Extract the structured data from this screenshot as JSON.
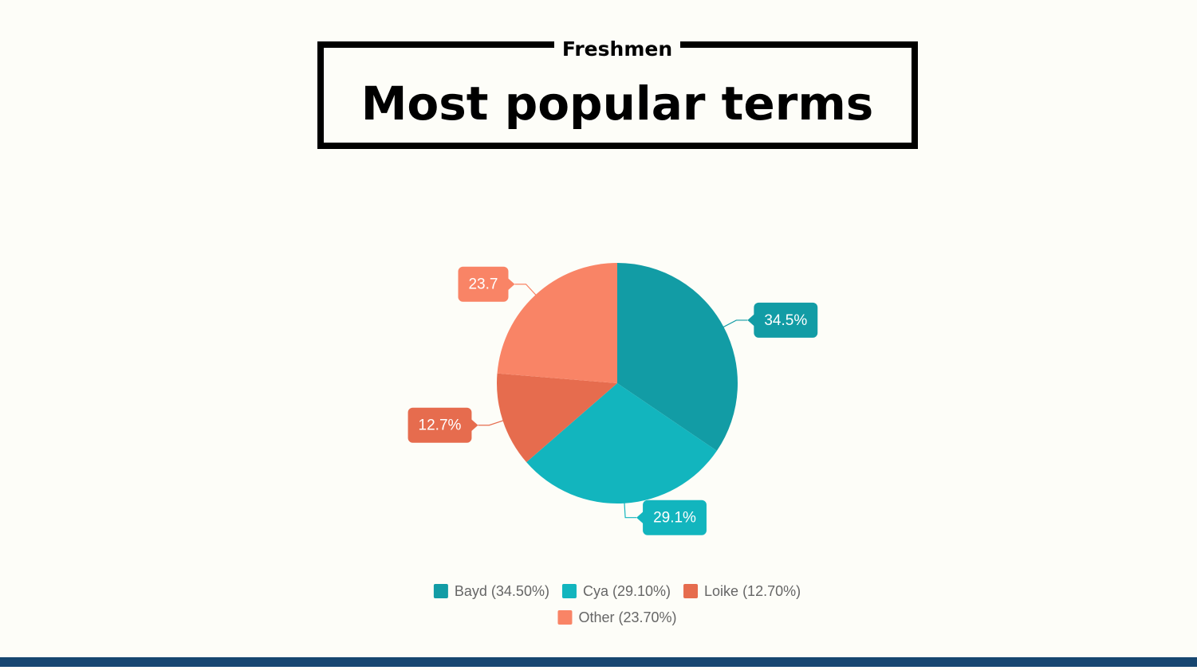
{
  "chart_data": {
    "type": "pie",
    "title": "Most popular terms",
    "subtitle": "Freshmen",
    "categories": [
      "Bayd (34.50%)",
      "Cya (29.10%)",
      "Loike (12.70%)",
      "Other (23.70%)"
    ],
    "values": [
      34.5,
      29.1,
      12.7,
      23.7
    ],
    "value_labels": [
      "34.5%",
      "29.1%",
      "12.7%",
      "23.7"
    ],
    "colors": [
      "#129ca5",
      "#12b5be",
      "#e66c4e",
      "#f98466"
    ],
    "legend": "bottom"
  }
}
